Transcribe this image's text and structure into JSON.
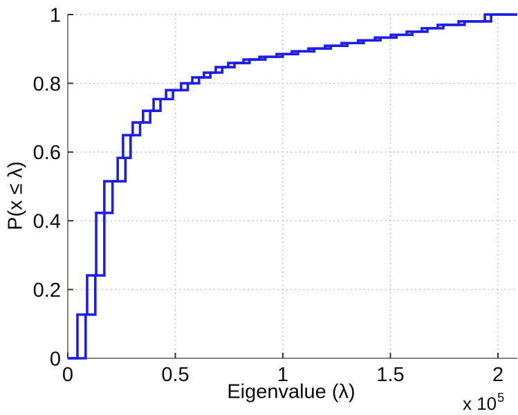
{
  "figure": {
    "background": "#ffffff"
  },
  "chart_data": {
    "type": "line",
    "subtype": "ecdf-stairs",
    "title": "",
    "xlabel": "Eigenvalue (λ)",
    "ylabel": "P(x ≤ λ)",
    "x_axis_multiplier": {
      "base": "x 10",
      "exponent": "5"
    },
    "xlim": [
      0,
      2.09
    ],
    "ylim": [
      0,
      1
    ],
    "x_ticks": {
      "values": [
        0,
        0.5,
        1,
        1.5,
        2
      ],
      "labels": [
        "0",
        "0.5",
        "1",
        "1.5",
        "2"
      ]
    },
    "y_ticks": {
      "values": [
        0,
        0.2,
        0.4,
        0.6,
        0.8,
        1
      ],
      "labels": [
        "0",
        "0.2",
        "0.4",
        "0.6",
        "0.8",
        "1"
      ]
    },
    "grid": "dotted",
    "legend": "none",
    "colors": {
      "line": "#1d1de8",
      "grid": "#ababab",
      "axis": "#5c5c5c",
      "tick": "#333333",
      "text": "#0a0a0a"
    },
    "p_levels": [
      0.127,
      0.241,
      0.423,
      0.515,
      0.583,
      0.649,
      0.686,
      0.72,
      0.754,
      0.78,
      0.8,
      0.817,
      0.831,
      0.847,
      0.859,
      0.869,
      0.877,
      0.885,
      0.893,
      0.901,
      0.909,
      0.917,
      0.925,
      0.933,
      0.941,
      0.95,
      0.96,
      0.97,
      0.98,
      1.0
    ],
    "series": [
      {
        "name": "ecdf-curve-1",
        "x": [
          0.045,
          0.09,
          0.132,
          0.17,
          0.232,
          0.257,
          0.302,
          0.35,
          0.399,
          0.457,
          0.527,
          0.579,
          0.633,
          0.688,
          0.746,
          0.817,
          0.891,
          0.971,
          1.042,
          1.119,
          1.196,
          1.273,
          1.35,
          1.428,
          1.502,
          1.576,
          1.646,
          1.72,
          1.817,
          1.939
        ]
      },
      {
        "name": "ecdf-curve-2",
        "x": [
          0.083,
          0.128,
          0.17,
          0.208,
          0.268,
          0.292,
          0.336,
          0.383,
          0.431,
          0.489,
          0.558,
          0.61,
          0.663,
          0.718,
          0.775,
          0.845,
          0.919,
          0.999,
          1.07,
          1.146,
          1.223,
          1.3,
          1.376,
          1.454,
          1.528,
          1.602,
          1.672,
          1.746,
          1.845,
          1.968
        ]
      }
    ],
    "layout": {
      "plot_left": 98,
      "plot_right": 748,
      "plot_top": 21,
      "plot_bottom": 518,
      "tick_length": 8,
      "line_width": 3.6,
      "x_tick_label_offset": 33,
      "y_tick_label_offset": 10
    }
  }
}
